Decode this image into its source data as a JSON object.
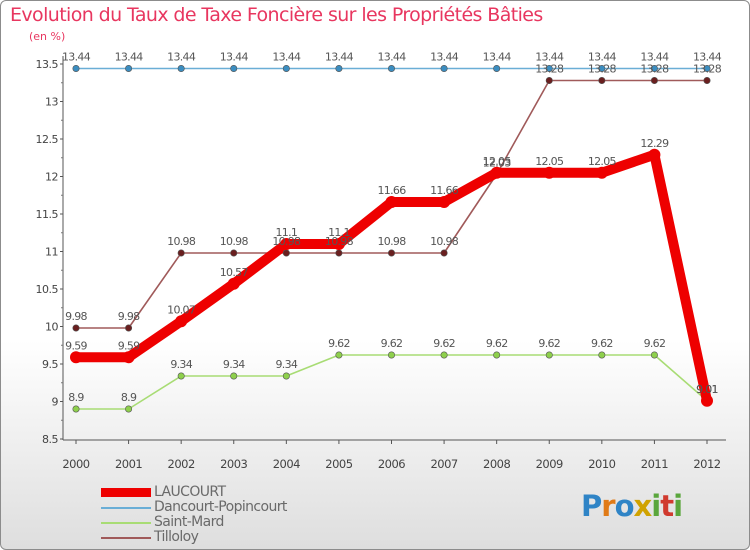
{
  "header": {
    "title": "Evolution du Taux de Taxe Foncière sur les Propriétés Bâties",
    "unit": "(en %)"
  },
  "brand": {
    "letters": [
      "P",
      "r",
      "o",
      "x",
      "i",
      "t",
      "i"
    ],
    "colors": [
      "#2f84c6",
      "#e07b18",
      "#2f84c6",
      "#d0a200",
      "#5aa63c",
      "#d03a2e",
      "#5aa63c"
    ]
  },
  "chart_data": {
    "type": "line",
    "title": "Evolution du Taux de Taxe Foncière sur les Propriétés Bâties",
    "ylabel": "(en %)",
    "xlabel": "",
    "x": [
      "2000",
      "2001",
      "2002",
      "2003",
      "2004",
      "2005",
      "2006",
      "2007",
      "2008",
      "2009",
      "2010",
      "2011",
      "2012"
    ],
    "ylim": [
      8.5,
      13.5
    ],
    "yticks": [
      "8.5",
      "9",
      "9.5",
      "10",
      "10.5",
      "11",
      "11.5",
      "12",
      "12.5",
      "13",
      "13.5"
    ],
    "grid": false,
    "series": [
      {
        "name": "LAUCOURT",
        "color": "#ee0000",
        "values": [
          9.59,
          9.59,
          10.07,
          10.57,
          11.1,
          11.1,
          11.66,
          11.66,
          12.05,
          12.05,
          12.05,
          12.29,
          9.01
        ],
        "labels": [
          "9.59",
          "9.59",
          "10.07",
          "10.57",
          "11.1",
          "11.1",
          "11.66",
          "11.66",
          "12.05",
          "12.05",
          "12.05",
          "12.29",
          "9.01"
        ]
      },
      {
        "name": "Dancourt-Popincourt",
        "color": "#6aaed6",
        "values": [
          13.44,
          13.44,
          13.44,
          13.44,
          13.44,
          13.44,
          13.44,
          13.44,
          13.44,
          13.44,
          13.44,
          13.44,
          13.44
        ],
        "labels": [
          "13.44",
          "13.44",
          "13.44",
          "13.44",
          "13.44",
          "13.44",
          "13.44",
          "13.44",
          "13.44",
          "13.44",
          "13.44",
          "13.44",
          "13.44"
        ]
      },
      {
        "name": "Saint-Mard",
        "color": "#a8dc74",
        "values": [
          8.9,
          8.9,
          9.34,
          9.34,
          9.34,
          9.62,
          9.62,
          9.62,
          9.62,
          9.62,
          9.62,
          9.62,
          9.01
        ],
        "labels": [
          "8.9",
          "8.9",
          "9.34",
          "9.34",
          "9.34",
          "9.62",
          "9.62",
          "9.62",
          "9.62",
          "9.62",
          "9.62",
          "9.62",
          "9.01"
        ]
      },
      {
        "name": "Tilloloy",
        "color": "#a05a5a",
        "values": [
          9.98,
          9.98,
          10.98,
          10.98,
          10.98,
          10.98,
          10.98,
          10.98,
          12.03,
          13.28,
          13.28,
          13.28,
          13.28
        ],
        "labels": [
          "9.98",
          "9.98",
          "10.98",
          "10.98",
          "10.98",
          "10.98",
          "10.98",
          "10.98",
          "12.03",
          "13.28",
          "13.28",
          "13.28",
          "13.28"
        ]
      }
    ]
  }
}
